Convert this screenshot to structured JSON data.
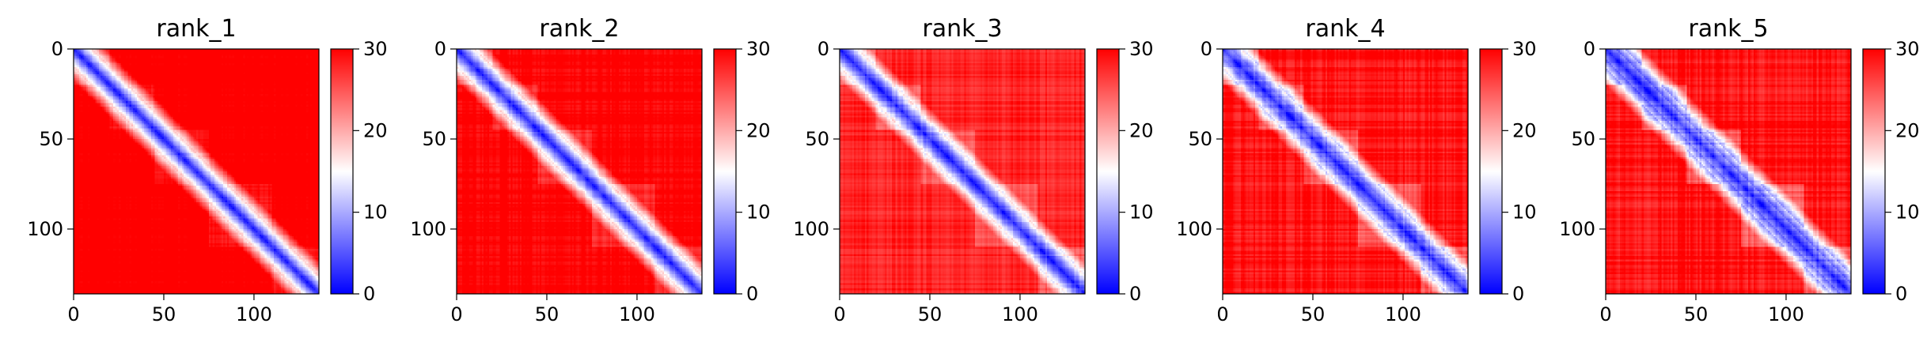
{
  "chart_data": [
    {
      "type": "heatmap",
      "title": "rank_1",
      "matrix_size": 136,
      "x_ticks": [
        0,
        50,
        100
      ],
      "y_ticks": [
        0,
        50,
        100
      ],
      "colorbar": {
        "ticks": [
          0,
          10,
          20,
          30
        ],
        "range": [
          0,
          30
        ],
        "colors": [
          "#0000ff",
          "#ffffff",
          "#ff0000"
        ]
      },
      "diagonal_band_width": 2.5,
      "baseline_offdiag": 29,
      "domain_boundaries": [
        20,
        45,
        75,
        110
      ]
    },
    {
      "type": "heatmap",
      "title": "rank_2",
      "matrix_size": 136,
      "x_ticks": [
        0,
        50,
        100
      ],
      "y_ticks": [
        0,
        50,
        100
      ],
      "colorbar": {
        "ticks": [
          0,
          10,
          20,
          30
        ],
        "range": [
          0,
          30
        ],
        "colors": [
          "#0000ff",
          "#ffffff",
          "#ff0000"
        ]
      },
      "diagonal_band_width": 3,
      "baseline_offdiag": 28,
      "domain_boundaries": [
        20,
        45,
        75,
        110
      ]
    },
    {
      "type": "heatmap",
      "title": "rank_3",
      "matrix_size": 136,
      "x_ticks": [
        0,
        50,
        100
      ],
      "y_ticks": [
        0,
        50,
        100
      ],
      "colorbar": {
        "ticks": [
          0,
          10,
          20,
          30
        ],
        "range": [
          0,
          30
        ],
        "colors": [
          "#0000ff",
          "#ffffff",
          "#ff0000"
        ]
      },
      "diagonal_band_width": 3.5,
      "baseline_offdiag": 26,
      "domain_boundaries": [
        20,
        45,
        75,
        110
      ]
    },
    {
      "type": "heatmap",
      "title": "rank_4",
      "matrix_size": 136,
      "x_ticks": [
        0,
        50,
        100
      ],
      "y_ticks": [
        0,
        50,
        100
      ],
      "colorbar": {
        "ticks": [
          0,
          10,
          20,
          30
        ],
        "range": [
          0,
          30
        ],
        "colors": [
          "#0000ff",
          "#ffffff",
          "#ff0000"
        ]
      },
      "diagonal_band_width": 4.5,
      "baseline_offdiag": 27,
      "domain_boundaries": [
        20,
        45,
        75,
        110
      ]
    },
    {
      "type": "heatmap",
      "title": "rank_5",
      "matrix_size": 136,
      "x_ticks": [
        0,
        50,
        100
      ],
      "y_ticks": [
        0,
        50,
        100
      ],
      "colorbar": {
        "ticks": [
          0,
          10,
          20,
          30
        ],
        "range": [
          0,
          30
        ],
        "colors": [
          "#0000ff",
          "#ffffff",
          "#ff0000"
        ]
      },
      "diagonal_band_width": 6,
      "baseline_offdiag": 27,
      "domain_boundaries": [
        20,
        45,
        75,
        110
      ]
    }
  ]
}
